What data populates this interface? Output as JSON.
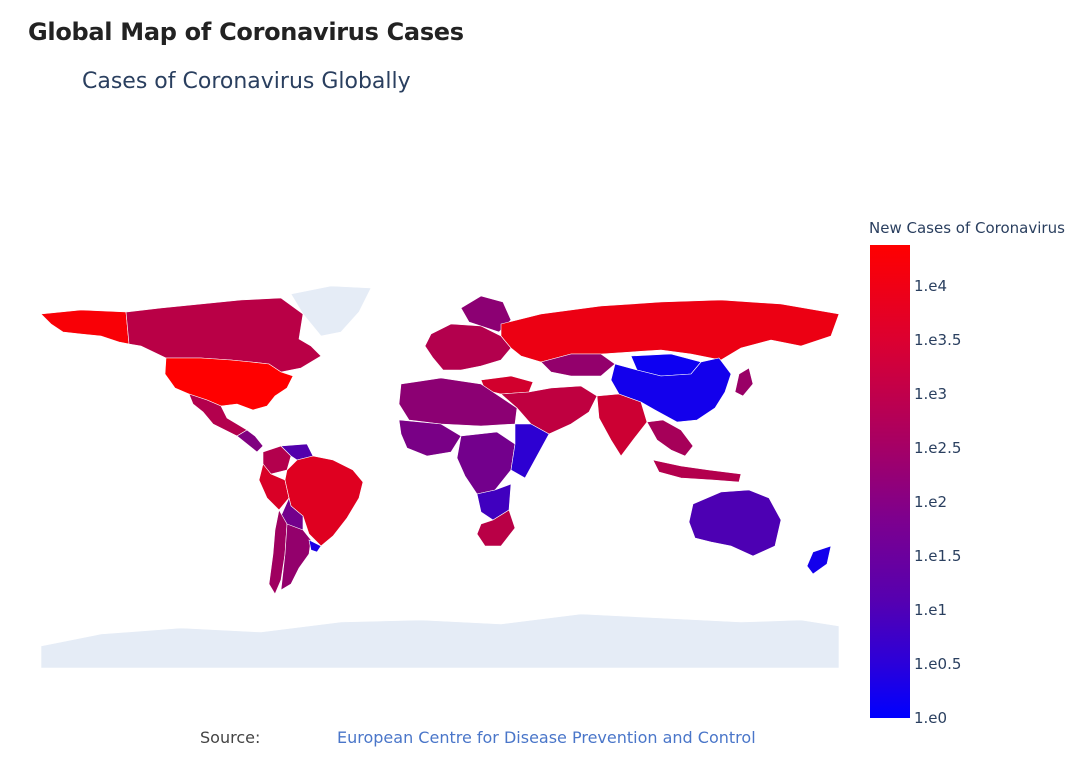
{
  "page": {
    "heading": "Global Map of Coronavirus Cases",
    "source_label": "Source:",
    "source_link": "European Centre for Disease Prevention and Control"
  },
  "chart_data": {
    "type": "choropleth",
    "title": "Cases of Coronavirus Globally",
    "colorbar_title": "New Cases of Coronavirus",
    "colorbar_ticks": [
      "1.e4",
      "1.e3.5",
      "1.e3",
      "1.e2.5",
      "1.e2",
      "1.e1.5",
      "1.e1",
      "1.e0.5",
      "1.e0"
    ],
    "colorscale": [
      "#0000ff",
      "#ff0000"
    ],
    "no_data_color": "#e5ecf6",
    "regions": [
      {
        "name": "United States",
        "log10_value": 4.0
      },
      {
        "name": "Alaska",
        "log10_value": 3.9
      },
      {
        "name": "Canada",
        "log10_value": 2.9
      },
      {
        "name": "Greenland",
        "log10_value": null
      },
      {
        "name": "Mexico",
        "log10_value": 2.8
      },
      {
        "name": "Central America",
        "log10_value": 2.0
      },
      {
        "name": "Brazil",
        "log10_value": 3.5
      },
      {
        "name": "Peru",
        "log10_value": 3.4
      },
      {
        "name": "Colombia",
        "log10_value": 2.8
      },
      {
        "name": "Venezuela",
        "log10_value": 1.3
      },
      {
        "name": "Bolivia",
        "log10_value": 1.8
      },
      {
        "name": "Chile",
        "log10_value": 2.5
      },
      {
        "name": "Argentina",
        "log10_value": 2.3
      },
      {
        "name": "Uruguay",
        "log10_value": 0.4
      },
      {
        "name": "Russia",
        "log10_value": 3.7
      },
      {
        "name": "Europe",
        "log10_value": 2.8
      },
      {
        "name": "Scandinavia",
        "log10_value": 2.2
      },
      {
        "name": "Turkey",
        "log10_value": 3.3
      },
      {
        "name": "Middle East",
        "log10_value": 3.0
      },
      {
        "name": "Kazakhstan",
        "log10_value": 2.3
      },
      {
        "name": "India",
        "log10_value": 3.2
      },
      {
        "name": "China",
        "log10_value": 0.3
      },
      {
        "name": "Mongolia",
        "log10_value": 0.2
      },
      {
        "name": "Japan",
        "log10_value": 2.4
      },
      {
        "name": "Southeast Asia",
        "log10_value": 2.6
      },
      {
        "name": "Indonesia",
        "log10_value": 2.8
      },
      {
        "name": "North Africa",
        "log10_value": 2.2
      },
      {
        "name": "West Africa",
        "log10_value": 1.9
      },
      {
        "name": "Central Africa",
        "log10_value": 1.8
      },
      {
        "name": "East Africa",
        "log10_value": 0.7
      },
      {
        "name": "Southern Africa",
        "log10_value": 1.0
      },
      {
        "name": "South Africa",
        "log10_value": 2.9
      },
      {
        "name": "Australia",
        "log10_value": 1.2
      },
      {
        "name": "New Zealand",
        "log10_value": 0.3
      },
      {
        "name": "Antarctica",
        "log10_value": null
      }
    ]
  }
}
